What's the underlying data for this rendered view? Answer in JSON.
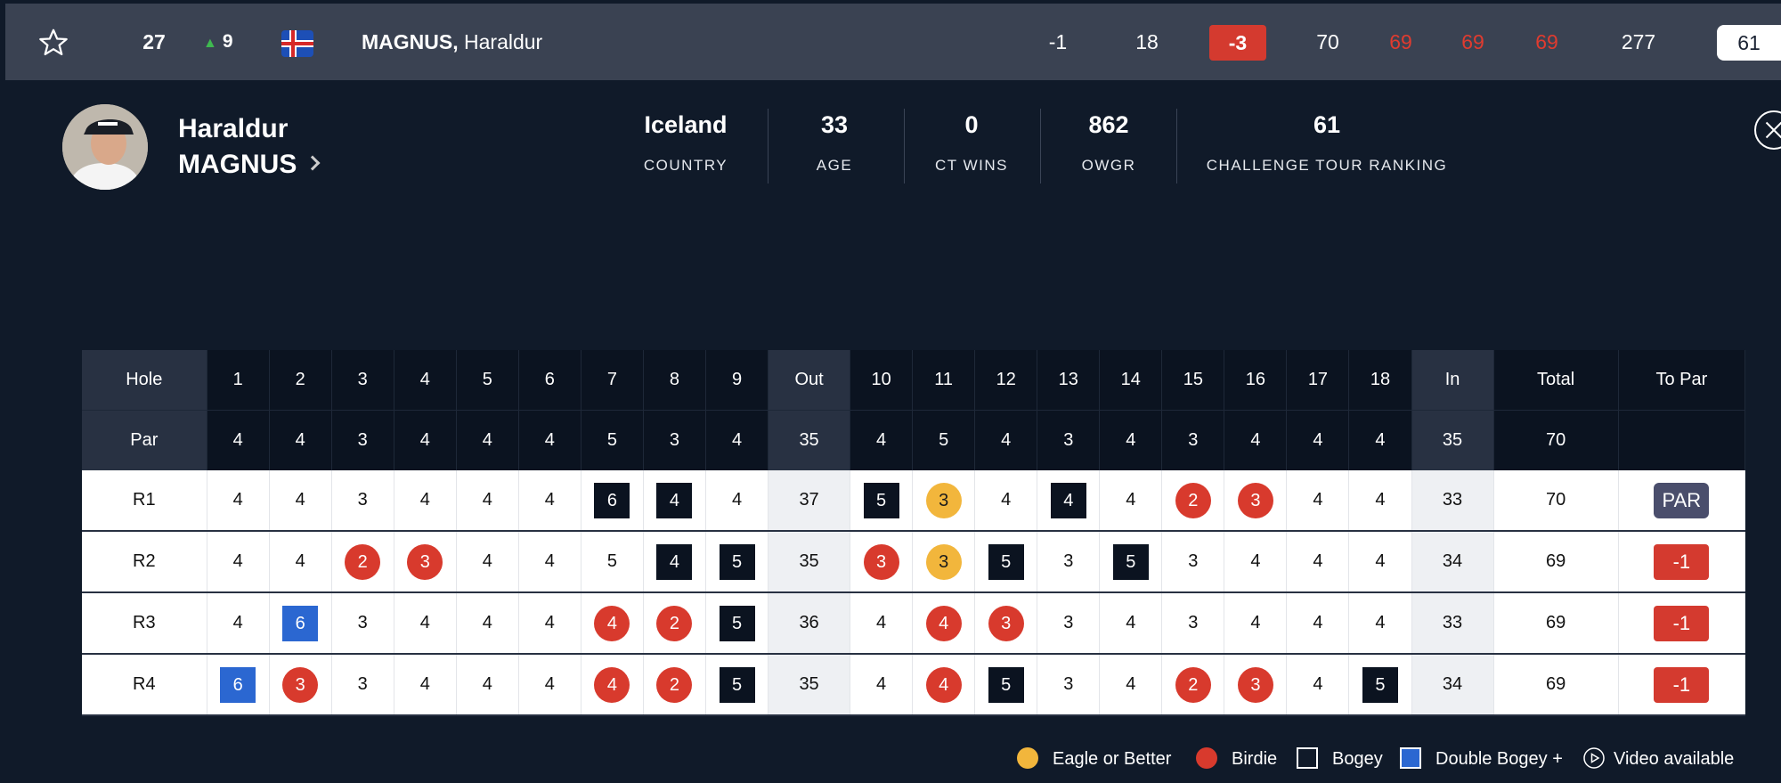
{
  "colors": {
    "birdie": "#d83a2d",
    "eagle": "#f2b63c",
    "bogey": "#0b1320",
    "double_bogey": "#2b67d1",
    "accent_red": "#d43a2f"
  },
  "topbar": {
    "position": "27",
    "movement": "9",
    "player_last": "MAGNUS,",
    "player_first": "Haraldur",
    "today": "-1",
    "thru": "18",
    "to_par": "-3",
    "r1": "70",
    "r2": "69",
    "r3": "69",
    "r4": "69",
    "total": "277",
    "ranking": "61"
  },
  "profile": {
    "first_name": "Haraldur",
    "last_name": "MAGNUS",
    "stats": [
      {
        "value": "Iceland",
        "label": "COUNTRY"
      },
      {
        "value": "33",
        "label": "AGE"
      },
      {
        "value": "0",
        "label": "CT WINS"
      },
      {
        "value": "862",
        "label": "OWGR"
      },
      {
        "value": "61",
        "label": "CHALLENGE TOUR RANKING"
      }
    ]
  },
  "scorecard": {
    "header": [
      "Hole",
      "1",
      "2",
      "3",
      "4",
      "5",
      "6",
      "7",
      "8",
      "9",
      "Out",
      "10",
      "11",
      "12",
      "13",
      "14",
      "15",
      "16",
      "17",
      "18",
      "In",
      "Total",
      "To Par"
    ],
    "par": [
      "Par",
      "4",
      "4",
      "3",
      "4",
      "4",
      "4",
      "5",
      "3",
      "4",
      "35",
      "4",
      "5",
      "4",
      "3",
      "4",
      "3",
      "4",
      "4",
      "4",
      "35",
      "70",
      ""
    ],
    "rounds": [
      {
        "label": "R1",
        "holes": [
          "4",
          "4",
          "3",
          "4",
          "4",
          "4",
          "6",
          "4",
          "4",
          "37",
          "5",
          "3",
          "4",
          "4",
          "4",
          "2",
          "3",
          "4",
          "4",
          "33",
          "70"
        ],
        "to_par": "PAR"
      },
      {
        "label": "R2",
        "holes": [
          "4",
          "4",
          "2",
          "3",
          "4",
          "4",
          "5",
          "4",
          "5",
          "35",
          "3",
          "3",
          "5",
          "3",
          "5",
          "3",
          "4",
          "4",
          "4",
          "34",
          "69"
        ],
        "to_par": "-1"
      },
      {
        "label": "R3",
        "holes": [
          "4",
          "6",
          "3",
          "4",
          "4",
          "4",
          "4",
          "2",
          "5",
          "36",
          "4",
          "4",
          "3",
          "3",
          "4",
          "3",
          "4",
          "4",
          "4",
          "33",
          "69"
        ],
        "to_par": "-1"
      },
      {
        "label": "R4",
        "holes": [
          "6",
          "3",
          "3",
          "4",
          "4",
          "4",
          "4",
          "2",
          "5",
          "35",
          "4",
          "4",
          "5",
          "3",
          "4",
          "2",
          "3",
          "4",
          "5",
          "34",
          "69"
        ],
        "to_par": "-1"
      }
    ]
  },
  "legend": {
    "eagle": "Eagle or Better",
    "birdie": "Birdie",
    "bogey": "Bogey",
    "double_bogey": "Double Bogey +",
    "video": "Video available"
  }
}
